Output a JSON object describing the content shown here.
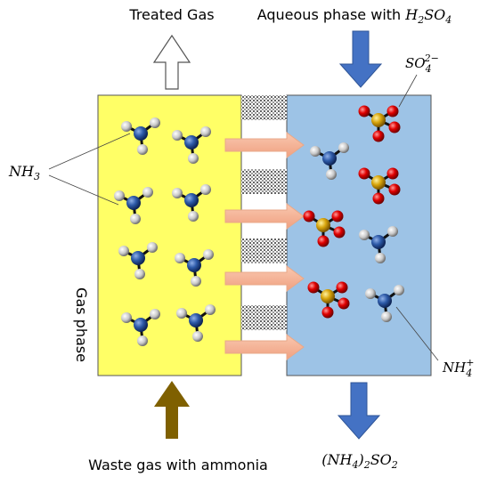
{
  "labels": {
    "treated_gas": "Treated Gas",
    "aqueous_phase": [
      "Aqueous phase with ",
      "H",
      "2",
      "SO",
      "4"
    ],
    "sulfate": [
      "SO",
      "4",
      "2−"
    ],
    "ammonia": [
      "NH",
      "3"
    ],
    "gas_phase": "Gas phase",
    "ammonium": [
      "NH",
      "4",
      "+"
    ],
    "waste_gas": "Waste gas with ammonia",
    "product": [
      "(NH",
      "4",
      ")",
      "2",
      "SO",
      "2"
    ]
  }
}
